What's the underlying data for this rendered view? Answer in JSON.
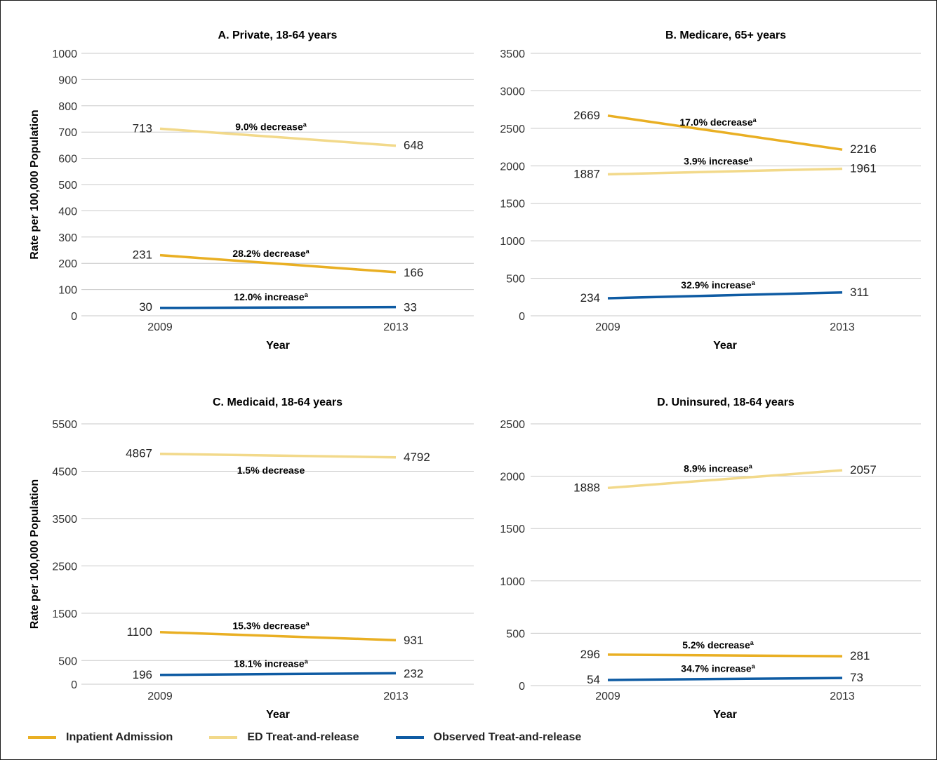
{
  "colors": {
    "inpatient": "#E9AF23",
    "ed": "#F2D98A",
    "observed": "#0E5BA3"
  },
  "legend": [
    {
      "key": "inpatient",
      "label": "Inpatient Admission"
    },
    {
      "key": "ed",
      "label": "ED Treat-and-release"
    },
    {
      "key": "observed",
      "label": "Observed Treat-and-release"
    }
  ],
  "chart_data": [
    {
      "type": "line",
      "title": "A. Private, 18-64 years",
      "xlabel": "Year",
      "ylabel": "Rate per 100,000 Population",
      "x": [
        "2009",
        "2013"
      ],
      "ylim": [
        0,
        1000
      ],
      "yticks": [
        0,
        100,
        200,
        300,
        400,
        500,
        600,
        700,
        800,
        900,
        1000
      ],
      "grid": true,
      "series": [
        {
          "key": "ed",
          "values": [
            713,
            648
          ],
          "labels": [
            "713",
            "648"
          ],
          "annotation": "9.0% decrease",
          "annotation_sup": "a"
        },
        {
          "key": "inpatient",
          "values": [
            231,
            166
          ],
          "labels": [
            "231",
            "166"
          ],
          "annotation": "28.2% decrease",
          "annotation_sup": "a"
        },
        {
          "key": "observed",
          "values": [
            30,
            33
          ],
          "labels": [
            "30",
            "33"
          ],
          "annotation": "12.0% increase",
          "annotation_sup": "a"
        }
      ]
    },
    {
      "type": "line",
      "title": "B. Medicare, 65+ years",
      "xlabel": "Year",
      "ylabel": "",
      "x": [
        "2009",
        "2013"
      ],
      "ylim": [
        0,
        3500
      ],
      "yticks": [
        0,
        500,
        1000,
        1500,
        2000,
        2500,
        3000,
        3500
      ],
      "grid": true,
      "series": [
        {
          "key": "inpatient",
          "values": [
            2669,
            2216
          ],
          "labels": [
            "2669",
            "2216"
          ],
          "annotation": "17.0% decrease",
          "annotation_sup": "a"
        },
        {
          "key": "ed",
          "values": [
            1887,
            1961
          ],
          "labels": [
            "1887",
            "1961"
          ],
          "annotation": "3.9% increase",
          "annotation_sup": "a"
        },
        {
          "key": "observed",
          "values": [
            234,
            311
          ],
          "labels": [
            "234",
            "311"
          ],
          "annotation": "32.9% increase",
          "annotation_sup": "a"
        }
      ]
    },
    {
      "type": "line",
      "title": "C. Medicaid, 18-64 years",
      "xlabel": "Year",
      "ylabel": "Rate per 100,000 Population",
      "x": [
        "2009",
        "2013"
      ],
      "ylim": [
        0,
        5500
      ],
      "yticks": [
        0,
        500,
        1500,
        2500,
        3500,
        4500,
        5500
      ],
      "grid": true,
      "series": [
        {
          "key": "ed",
          "values": [
            4867,
            4792
          ],
          "labels": [
            "4867",
            "4792"
          ],
          "annotation": "1.5% decrease",
          "annotation_sup": ""
        },
        {
          "key": "inpatient",
          "values": [
            1100,
            931
          ],
          "labels": [
            "1100",
            "931"
          ],
          "annotation": "15.3% decrease",
          "annotation_sup": "a"
        },
        {
          "key": "observed",
          "values": [
            196,
            232
          ],
          "labels": [
            "196",
            "232"
          ],
          "annotation": "18.1% increase",
          "annotation_sup": "a"
        }
      ]
    },
    {
      "type": "line",
      "title": "D. Uninsured, 18-64 years",
      "xlabel": "Year",
      "ylabel": "",
      "x": [
        "2009",
        "2013"
      ],
      "ylim": [
        0,
        2500
      ],
      "yticks": [
        0,
        500,
        1000,
        1500,
        2000,
        2500
      ],
      "grid": true,
      "series": [
        {
          "key": "ed",
          "values": [
            1888,
            2057
          ],
          "labels": [
            "1888",
            "2057"
          ],
          "annotation": "8.9% increase",
          "annotation_sup": "a"
        },
        {
          "key": "inpatient",
          "values": [
            296,
            281
          ],
          "labels": [
            "296",
            "281"
          ],
          "annotation": "5.2% decrease",
          "annotation_sup": "a"
        },
        {
          "key": "observed",
          "values": [
            54,
            73
          ],
          "labels": [
            "54",
            "73"
          ],
          "annotation": "34.7% increase",
          "annotation_sup": "a"
        }
      ]
    }
  ]
}
